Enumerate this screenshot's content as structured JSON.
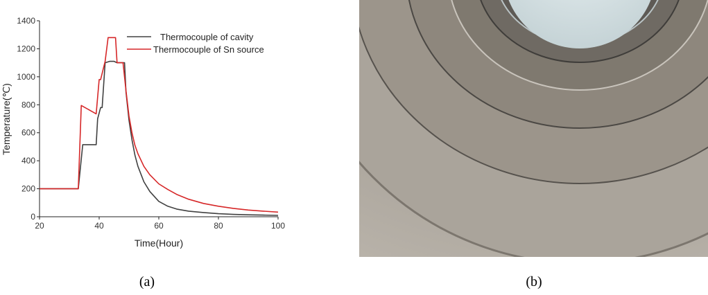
{
  "chart_data": {
    "type": "line",
    "xlabel": "Time(Hour)",
    "ylabel": "Temperature(℃)",
    "xlim": [
      20,
      100
    ],
    "ylim": [
      0,
      1400
    ],
    "xticks": [
      20,
      40,
      60,
      80,
      100
    ],
    "yticks": [
      0,
      200,
      400,
      600,
      800,
      1000,
      1200,
      1400
    ],
    "grid": false,
    "legend_position": "top-right",
    "series": [
      {
        "name": "Thermocouple of cavity",
        "color": "#404040",
        "x": [
          20,
          33,
          34.5,
          39,
          39.5,
          40.5,
          41,
          42,
          43.5,
          45,
          46,
          48.5,
          49,
          50,
          51,
          52,
          53,
          55,
          57,
          60,
          63,
          66,
          70,
          75,
          80,
          85,
          90,
          95,
          100
        ],
        "y": [
          200,
          200,
          515,
          515,
          700,
          780,
          780,
          1100,
          1110,
          1110,
          1100,
          1100,
          890,
          690,
          550,
          440,
          360,
          250,
          180,
          110,
          75,
          55,
          40,
          30,
          22,
          17,
          14,
          12,
          10
        ]
      },
      {
        "name": "Thermocouple of Sn source",
        "color": "#d62728",
        "x": [
          20,
          33,
          34,
          39,
          40,
          40.5,
          42,
          43,
          45.5,
          46,
          48,
          49,
          50,
          51,
          52,
          53,
          55,
          57,
          60,
          63,
          66,
          70,
          75,
          80,
          85,
          90,
          95,
          100
        ],
        "y": [
          200,
          200,
          795,
          735,
          980,
          980,
          1110,
          1280,
          1280,
          1100,
          1100,
          900,
          720,
          600,
          510,
          450,
          360,
          300,
          235,
          195,
          160,
          125,
          95,
          75,
          60,
          48,
          40,
          33
        ]
      }
    ]
  },
  "captions": {
    "a": "(a)",
    "b": "(b)"
  },
  "photo": {
    "palette": {
      "background": "#a49f97",
      "ring_dark": "#4c4a47",
      "ring_mid": "#8d877e",
      "ring_light": "#c3beb6",
      "core": "#dce6e8"
    }
  }
}
